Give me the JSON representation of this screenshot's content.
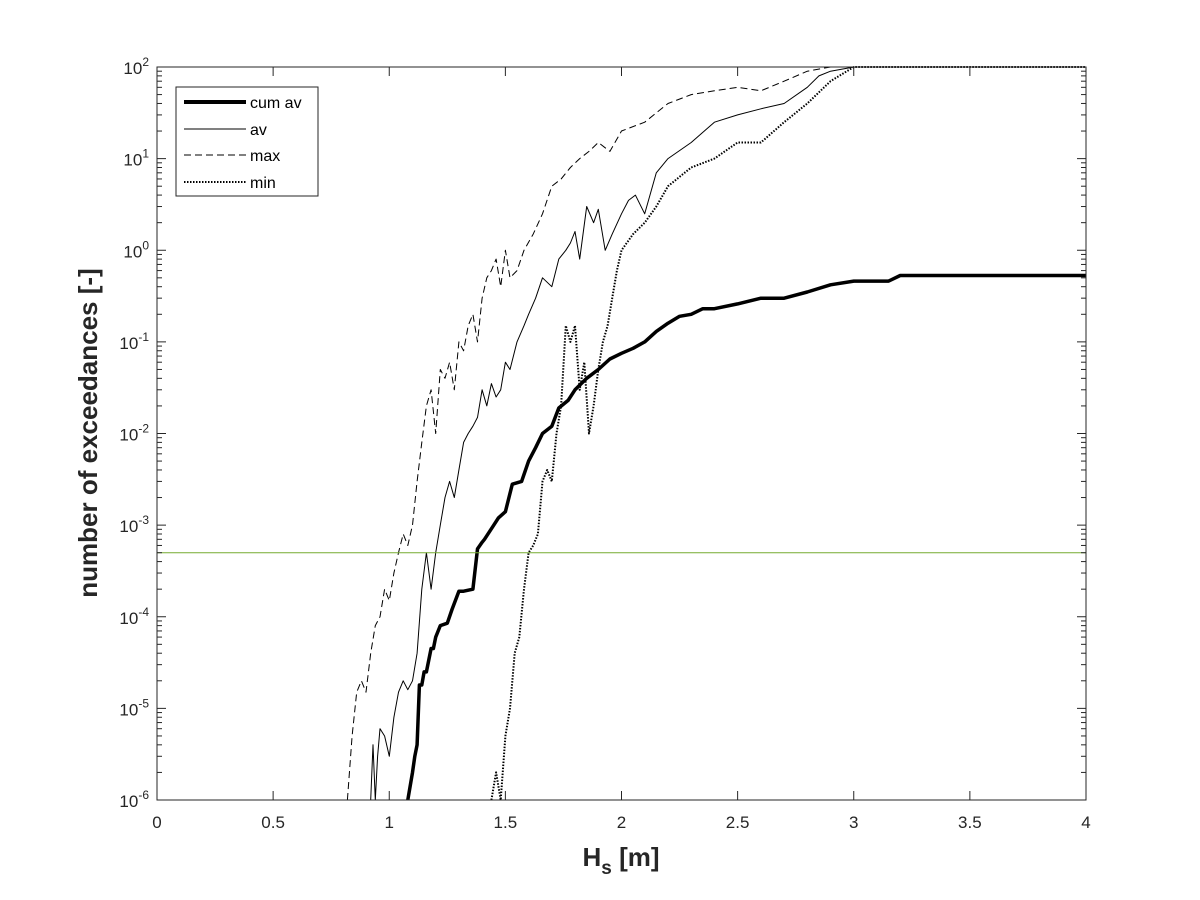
{
  "chart_data": {
    "type": "line",
    "title": "",
    "xlabel": "H",
    "xlabel_sub": "s",
    "xlabel_unit": " [m]",
    "ylabel": "number of exceedances [-]",
    "xlim": [
      0,
      4
    ],
    "ylim": [
      1e-06,
      100
    ],
    "yscale": "log",
    "grid": false,
    "legend_position": "top-left",
    "x_ticks": [
      0,
      0.5,
      1,
      1.5,
      2,
      2.5,
      3,
      3.5,
      4
    ],
    "x_tick_labels": [
      "0",
      "0.5",
      "1",
      "1.5",
      "2",
      "2.5",
      "3",
      "3.5",
      "4"
    ],
    "y_ticks": [
      1e-06,
      1e-05,
      0.0001,
      0.001,
      0.01,
      0.1,
      1,
      10,
      100
    ],
    "y_tick_exponents": [
      "-6",
      "-5",
      "-4",
      "-3",
      "-2",
      "-1",
      "0",
      "1",
      "2"
    ],
    "y_tick_base": "10",
    "reference_line": {
      "y": 0.0005,
      "color": "#77ac30"
    },
    "series": [
      {
        "name": "cum av",
        "style": "solid-thick",
        "x": [
          1.08,
          1.1,
          1.11,
          1.12,
          1.13,
          1.14,
          1.15,
          1.16,
          1.18,
          1.19,
          1.2,
          1.22,
          1.25,
          1.27,
          1.3,
          1.32,
          1.36,
          1.38,
          1.4,
          1.41,
          1.45,
          1.47,
          1.5,
          1.53,
          1.57,
          1.6,
          1.63,
          1.66,
          1.7,
          1.73,
          1.77,
          1.8,
          1.85,
          1.9,
          1.95,
          2.0,
          2.05,
          2.1,
          2.15,
          2.2,
          2.25,
          2.3,
          2.35,
          2.4,
          2.5,
          2.6,
          2.7,
          2.8,
          2.9,
          3.0,
          3.1,
          3.15,
          3.2,
          3.3,
          3.5,
          4.0
        ],
        "y": [
          1e-06,
          2e-06,
          3e-06,
          4e-06,
          1.8e-05,
          1.8e-05,
          2.5e-05,
          2.5e-05,
          4.5e-05,
          4.5e-05,
          6e-05,
          8e-05,
          8.5e-05,
          0.00012,
          0.00019,
          0.00019,
          0.0002,
          0.00055,
          0.00065,
          0.0007,
          0.001,
          0.0012,
          0.0014,
          0.0028,
          0.003,
          0.005,
          0.007,
          0.01,
          0.012,
          0.019,
          0.023,
          0.03,
          0.04,
          0.05,
          0.065,
          0.075,
          0.085,
          0.1,
          0.13,
          0.16,
          0.19,
          0.2,
          0.23,
          0.23,
          0.26,
          0.3,
          0.3,
          0.35,
          0.42,
          0.46,
          0.46,
          0.46,
          0.53,
          0.53,
          0.53,
          0.53
        ]
      },
      {
        "name": "av",
        "style": "solid-thin",
        "x": [
          0.92,
          0.93,
          0.94,
          0.95,
          0.96,
          0.98,
          1.0,
          1.02,
          1.04,
          1.06,
          1.08,
          1.1,
          1.12,
          1.14,
          1.16,
          1.18,
          1.2,
          1.22,
          1.24,
          1.26,
          1.28,
          1.3,
          1.32,
          1.34,
          1.36,
          1.38,
          1.4,
          1.42,
          1.44,
          1.46,
          1.48,
          1.5,
          1.52,
          1.55,
          1.58,
          1.6,
          1.63,
          1.66,
          1.7,
          1.73,
          1.76,
          1.78,
          1.8,
          1.82,
          1.85,
          1.88,
          1.9,
          1.93,
          1.96,
          2.0,
          2.03,
          2.06,
          2.1,
          2.15,
          2.2,
          2.3,
          2.4,
          2.5,
          2.6,
          2.7,
          2.8,
          2.85,
          2.9,
          3.0,
          3.2,
          4.0
        ],
        "y": [
          1e-06,
          4e-06,
          1e-06,
          3e-06,
          6e-06,
          5e-06,
          3e-06,
          8e-06,
          1.5e-05,
          2e-05,
          1.6e-05,
          2e-05,
          4e-05,
          0.0002,
          0.0005,
          0.0002,
          0.0005,
          0.001,
          0.002,
          0.003,
          0.002,
          0.004,
          0.008,
          0.01,
          0.012,
          0.015,
          0.03,
          0.02,
          0.035,
          0.025,
          0.03,
          0.06,
          0.05,
          0.1,
          0.15,
          0.2,
          0.3,
          0.5,
          0.4,
          0.8,
          1.0,
          1.2,
          1.6,
          0.8,
          3.0,
          2.0,
          2.8,
          1.0,
          1.5,
          2.5,
          3.5,
          4.0,
          2.5,
          7.0,
          10.0,
          15.0,
          25.0,
          30.0,
          35.0,
          40.0,
          60.0,
          80.0,
          90.0,
          100.0,
          100.0,
          100.0
        ]
      },
      {
        "name": "max",
        "style": "dashed",
        "x": [
          0.82,
          0.84,
          0.86,
          0.88,
          0.9,
          0.92,
          0.94,
          0.96,
          0.98,
          1.0,
          1.02,
          1.04,
          1.06,
          1.08,
          1.1,
          1.12,
          1.14,
          1.16,
          1.18,
          1.2,
          1.22,
          1.24,
          1.26,
          1.28,
          1.3,
          1.32,
          1.34,
          1.36,
          1.38,
          1.4,
          1.42,
          1.44,
          1.46,
          1.48,
          1.5,
          1.52,
          1.55,
          1.58,
          1.62,
          1.66,
          1.7,
          1.74,
          1.78,
          1.82,
          1.86,
          1.9,
          1.95,
          2.0,
          2.1,
          2.2,
          2.3,
          2.4,
          2.5,
          2.6,
          2.7,
          2.8,
          2.9,
          3.0,
          4.0
        ],
        "y": [
          1e-06,
          5e-06,
          1.5e-05,
          2e-05,
          1.5e-05,
          4e-05,
          8e-05,
          0.0001,
          0.0002,
          0.00015,
          0.0003,
          0.0005,
          0.0008,
          0.0006,
          0.001,
          0.003,
          0.008,
          0.02,
          0.03,
          0.01,
          0.05,
          0.04,
          0.06,
          0.03,
          0.1,
          0.08,
          0.15,
          0.2,
          0.1,
          0.3,
          0.5,
          0.6,
          0.8,
          0.4,
          1.0,
          0.5,
          0.6,
          1.0,
          1.5,
          2.5,
          5.0,
          6.0,
          8.0,
          10.0,
          12.0,
          15.0,
          12.0,
          20.0,
          25.0,
          40.0,
          50.0,
          55.0,
          60.0,
          55.0,
          70.0,
          90.0,
          100.0,
          100.0,
          100.0
        ]
      },
      {
        "name": "min",
        "style": "dotted",
        "x": [
          1.44,
          1.46,
          1.48,
          1.5,
          1.52,
          1.54,
          1.56,
          1.58,
          1.6,
          1.62,
          1.64,
          1.66,
          1.68,
          1.7,
          1.72,
          1.74,
          1.76,
          1.78,
          1.8,
          1.82,
          1.84,
          1.86,
          1.88,
          1.9,
          1.92,
          1.94,
          1.96,
          1.98,
          2.0,
          2.05,
          2.1,
          2.15,
          2.2,
          2.3,
          2.4,
          2.5,
          2.6,
          2.7,
          2.8,
          2.9,
          3.0,
          4.0
        ],
        "y": [
          1e-06,
          2e-06,
          1e-06,
          5e-06,
          1e-05,
          4e-05,
          6e-05,
          0.0002,
          0.0005,
          0.0006,
          0.0008,
          0.003,
          0.004,
          0.003,
          0.01,
          0.02,
          0.15,
          0.1,
          0.15,
          0.03,
          0.06,
          0.01,
          0.02,
          0.05,
          0.1,
          0.15,
          0.3,
          0.6,
          1.0,
          1.5,
          2.0,
          3.0,
          5.0,
          8.0,
          10.0,
          15.0,
          15.0,
          25.0,
          40.0,
          70.0,
          100.0,
          100.0
        ]
      }
    ]
  }
}
